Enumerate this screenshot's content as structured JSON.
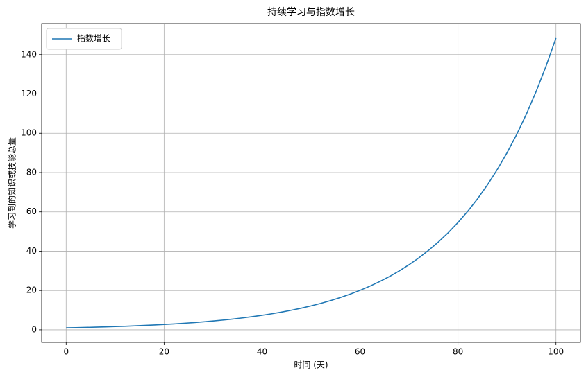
{
  "chart_data": {
    "type": "line",
    "title": "持续学习与指数增长",
    "x_label": "时间 (天)",
    "y_label": "学习到的知识或技能总量",
    "x": [
      0,
      2,
      4,
      6,
      8,
      10,
      12,
      14,
      16,
      18,
      20,
      22,
      24,
      26,
      28,
      30,
      32,
      34,
      36,
      38,
      40,
      42,
      44,
      46,
      48,
      50,
      52,
      54,
      56,
      58,
      60,
      62,
      64,
      66,
      68,
      70,
      72,
      74,
      76,
      78,
      80,
      82,
      84,
      86,
      88,
      90,
      92,
      94,
      96,
      98,
      100
    ],
    "series": [
      {
        "name": "指数增长",
        "color": "#1f77b4",
        "values": [
          1,
          1.11,
          1.22,
          1.35,
          1.49,
          1.65,
          1.82,
          2.01,
          2.23,
          2.46,
          2.72,
          3,
          3.32,
          3.67,
          4.06,
          4.48,
          4.95,
          5.47,
          6.05,
          6.69,
          7.39,
          8.17,
          9.03,
          9.97,
          11.02,
          12.18,
          13.46,
          14.88,
          16.44,
          18.17,
          20.09,
          22.2,
          24.53,
          27.11,
          29.96,
          33.12,
          36.6,
          40.45,
          44.7,
          49.4,
          54.6,
          60.34,
          66.69,
          73.7,
          81.45,
          90.02,
          99.48,
          109.95,
          121.51,
          134.29,
          148.41
        ]
      }
    ],
    "xlim": [
      -5,
      105
    ],
    "xticks": [
      0,
      20,
      40,
      60,
      80,
      100
    ],
    "ylim": [
      -6.37,
      155.78
    ],
    "yticks": [
      0,
      20,
      40,
      60,
      80,
      100,
      120,
      140
    ],
    "grid": true,
    "legend": "upper-left"
  }
}
